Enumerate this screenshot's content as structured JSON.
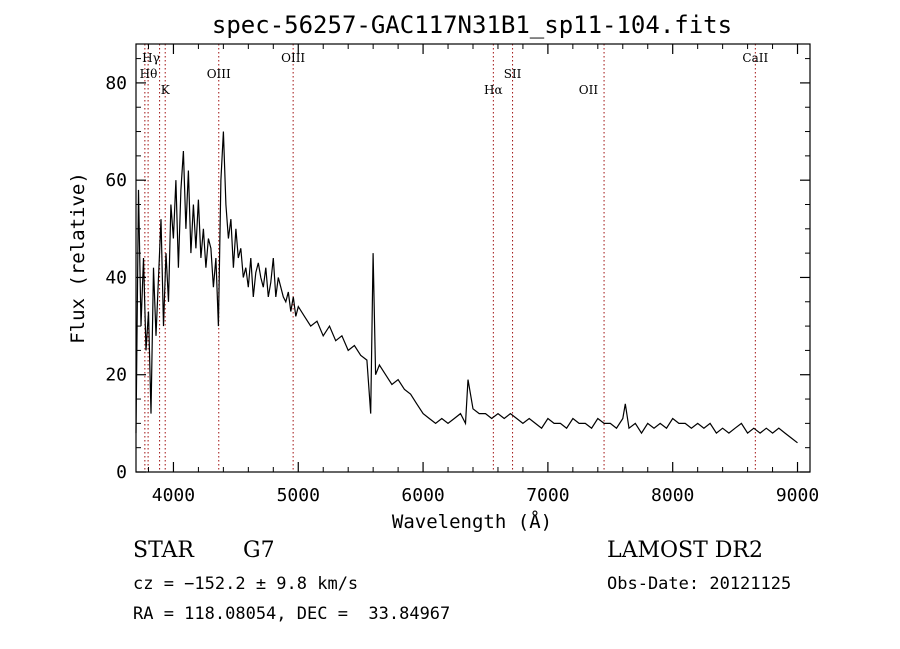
{
  "chart_data": {
    "type": "line",
    "title": "spec-56257-GAC117N31B1_sp11-104.fits",
    "xlabel": "Wavelength (Å)",
    "ylabel": "Flux (relative)",
    "xlim": [
      3700,
      9100
    ],
    "ylim": [
      0,
      88
    ],
    "xticks": [
      4000,
      5000,
      6000,
      7000,
      8000,
      9000
    ],
    "yticks": [
      0,
      20,
      40,
      60,
      80
    ],
    "grid": false,
    "series": [
      {
        "x": [
          3700,
          3720,
          3740,
          3760,
          3780,
          3800,
          3820,
          3840,
          3860,
          3880,
          3900,
          3920,
          3940,
          3960,
          3980,
          4000,
          4020,
          4040,
          4060,
          4080,
          4100,
          4120,
          4140,
          4160,
          4180,
          4200,
          4220,
          4240,
          4260,
          4280,
          4300,
          4320,
          4340,
          4360,
          4380,
          4400,
          4420,
          4440,
          4460,
          4480,
          4500,
          4520,
          4540,
          4560,
          4580,
          4600,
          4620,
          4640,
          4660,
          4680,
          4700,
          4720,
          4740,
          4760,
          4780,
          4800,
          4820,
          4840,
          4860,
          4880,
          4900,
          4920,
          4940,
          4960,
          4980,
          5000,
          5050,
          5100,
          5150,
          5200,
          5250,
          5300,
          5350,
          5400,
          5450,
          5500,
          5550,
          5580,
          5600,
          5620,
          5650,
          5700,
          5750,
          5800,
          5850,
          5900,
          5950,
          6000,
          6050,
          6100,
          6150,
          6200,
          6250,
          6300,
          6340,
          6360,
          6400,
          6450,
          6500,
          6550,
          6600,
          6650,
          6700,
          6750,
          6800,
          6850,
          6900,
          6950,
          7000,
          7050,
          7100,
          7150,
          7200,
          7250,
          7300,
          7350,
          7400,
          7450,
          7500,
          7550,
          7600,
          7620,
          7650,
          7700,
          7750,
          7800,
          7850,
          7900,
          7950,
          8000,
          8050,
          8100,
          8150,
          8200,
          8250,
          8300,
          8350,
          8400,
          8450,
          8500,
          8550,
          8600,
          8650,
          8700,
          8750,
          8800,
          8850,
          8900,
          8950,
          9000
        ],
        "values": [
          8,
          58,
          30,
          44,
          25,
          33,
          12,
          42,
          28,
          40,
          52,
          30,
          45,
          35,
          55,
          48,
          60,
          42,
          58,
          66,
          50,
          62,
          45,
          55,
          46,
          56,
          44,
          50,
          42,
          48,
          46,
          38,
          44,
          30,
          60,
          70,
          55,
          48,
          52,
          42,
          50,
          44,
          46,
          40,
          42,
          38,
          44,
          36,
          41,
          43,
          40,
          38,
          42,
          36,
          39,
          44,
          36,
          40,
          38,
          36,
          35,
          37,
          33,
          36,
          32,
          34,
          32,
          30,
          31,
          28,
          30,
          27,
          28,
          25,
          26,
          24,
          23,
          12,
          45,
          20,
          22,
          20,
          18,
          19,
          17,
          16,
          14,
          12,
          11,
          10,
          11,
          10,
          11,
          12,
          10,
          19,
          13,
          12,
          12,
          11,
          12,
          11,
          12,
          11,
          10,
          11,
          10,
          9,
          11,
          10,
          10,
          9,
          11,
          10,
          10,
          9,
          11,
          10,
          10,
          9,
          11,
          14,
          9,
          10,
          8,
          10,
          9,
          10,
          9,
          11,
          10,
          10,
          9,
          10,
          9,
          10,
          8,
          9,
          8,
          9,
          10,
          8,
          9,
          8,
          9,
          8,
          9,
          8,
          7,
          6
        ]
      }
    ],
    "annotations": [
      {
        "label": "Hγ",
        "x": 3820,
        "row": 1
      },
      {
        "label": "Hθ",
        "x": 3800,
        "row": 2
      },
      {
        "label": "K",
        "x": 3934,
        "row": 3
      },
      {
        "label": "OIII",
        "x": 4363,
        "row": 2
      },
      {
        "label": "OIII",
        "x": 4959,
        "row": 1
      },
      {
        "label": "Hα",
        "x": 6563,
        "row": 3
      },
      {
        "label": "SII",
        "x": 6717,
        "row": 2
      },
      {
        "label": "OII",
        "x": 7325,
        "row": 3
      },
      {
        "label": "CaII",
        "x": 8662,
        "row": 1
      }
    ],
    "line_markers": [
      3771,
      3797,
      3889,
      3934,
      4363,
      4959,
      6563,
      6717,
      7450,
      8662
    ]
  },
  "info": {
    "object_class": "STAR",
    "subclass": "G7",
    "survey": "LAMOST DR2",
    "cz": "cz = −152.2 ± 9.8 km/s",
    "obs_date": "Obs-Date: 20121125",
    "coords": "RA = 118.08054, DEC =  33.84967"
  },
  "colors": {
    "spectrum": "#000000",
    "marker": "#a01010"
  }
}
